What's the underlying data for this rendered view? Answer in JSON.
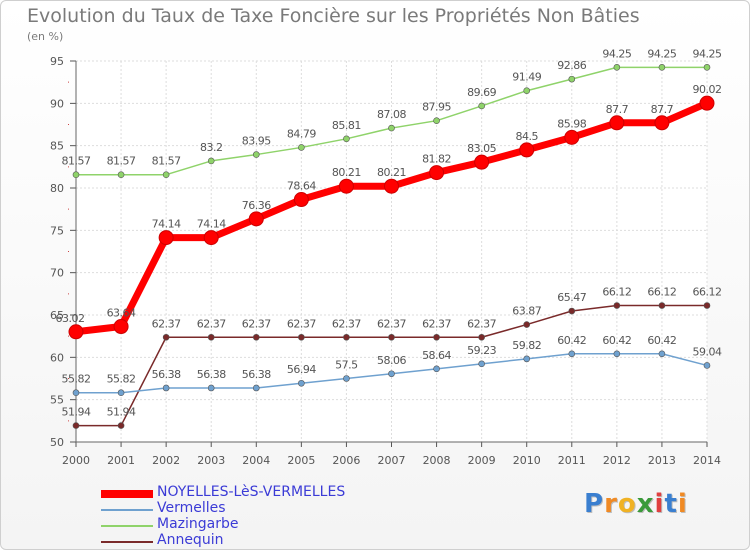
{
  "chart_data": {
    "type": "line",
    "title": "Evolution du Taux de Taxe Foncière sur les Propriétés Non Bâties",
    "ylabel": "(en %)",
    "xlabel": "",
    "ylim": [
      50,
      95
    ],
    "yticks": [
      50,
      55,
      60,
      65,
      70,
      75,
      80,
      85,
      90,
      95
    ],
    "categories": [
      "2000",
      "2001",
      "2002",
      "2003",
      "2004",
      "2005",
      "2006",
      "2007",
      "2008",
      "2009",
      "2010",
      "2011",
      "2012",
      "2013",
      "2014"
    ],
    "grid": true,
    "series": [
      {
        "name": "NOYELLES-LèS-VERMELLES",
        "color": "#ff0000",
        "values": [
          63.02,
          63.64,
          74.14,
          74.14,
          76.36,
          78.64,
          80.21,
          80.21,
          81.82,
          83.05,
          84.5,
          85.98,
          87.7,
          87.7,
          90.02
        ]
      },
      {
        "name": "Vermelles",
        "color": "#6fa1cf",
        "values": [
          55.82,
          55.82,
          56.38,
          56.38,
          56.38,
          56.94,
          57.5,
          58.06,
          58.64,
          59.23,
          59.82,
          60.42,
          60.42,
          60.42,
          59.04
        ]
      },
      {
        "name": "Mazingarbe",
        "color": "#8fd36a",
        "values": [
          81.57,
          81.57,
          81.57,
          83.2,
          83.95,
          84.79,
          85.81,
          87.08,
          87.95,
          89.69,
          91.49,
          92.86,
          94.25,
          94.25,
          94.25
        ]
      },
      {
        "name": "Annequin",
        "color": "#7a2a2a",
        "values": [
          51.94,
          51.94,
          62.37,
          62.37,
          62.37,
          62.37,
          62.37,
          62.37,
          62.37,
          62.37,
          63.87,
          65.47,
          66.12,
          66.12,
          66.12
        ]
      }
    ],
    "value_labels": [
      [
        "63.02",
        "63.64",
        "74.14",
        "74.14",
        "76.36",
        "78.64",
        "80.21",
        "80.21",
        "81.82",
        "83.05",
        "84.5",
        "85.98",
        "87.7",
        "87.7",
        "90.02"
      ],
      [
        "55.82",
        "55.82",
        "56.38",
        "56.38",
        "56.38",
        "56.94",
        "57.5",
        "58.06",
        "58.64",
        "59.23",
        "59.82",
        "60.42",
        "60.42",
        "60.42",
        "59.04"
      ],
      [
        "81.57",
        "81.57",
        "81.57",
        "83.2",
        "83.95",
        "84.79",
        "85.81",
        "87.08",
        "87.95",
        "89.69",
        "91.49",
        "92.86",
        "94.25",
        "94.25",
        "94.25"
      ],
      [
        "51.94",
        "51.94",
        "62.37",
        "62.37",
        "62.37",
        "62.37",
        "62.37",
        "62.37",
        "62.37",
        "62.37",
        "63.87",
        "65.47",
        "66.12",
        "66.12",
        "66.12"
      ]
    ]
  },
  "legend": {
    "items": [
      {
        "label": "NOYELLES-LèS-VERMELLES",
        "color": "#ff0000",
        "text_color": "#3b3bd6"
      },
      {
        "label": "Vermelles",
        "color": "#6fa1cf",
        "text_color": "#3b3bd6"
      },
      {
        "label": "Mazingarbe",
        "color": "#8fd36a",
        "text_color": "#3b3bd6"
      },
      {
        "label": "Annequin",
        "color": "#7a2a2a",
        "text_color": "#3b3bd6"
      }
    ]
  },
  "logo": {
    "letters": [
      "P",
      "r",
      "o",
      "x",
      "i",
      "t",
      "i"
    ],
    "colors": [
      "#3a7fd0",
      "#f08a24",
      "#f0b224",
      "#3a9a3a",
      "#e04040",
      "#3a7fd0",
      "#f08a24"
    ]
  }
}
